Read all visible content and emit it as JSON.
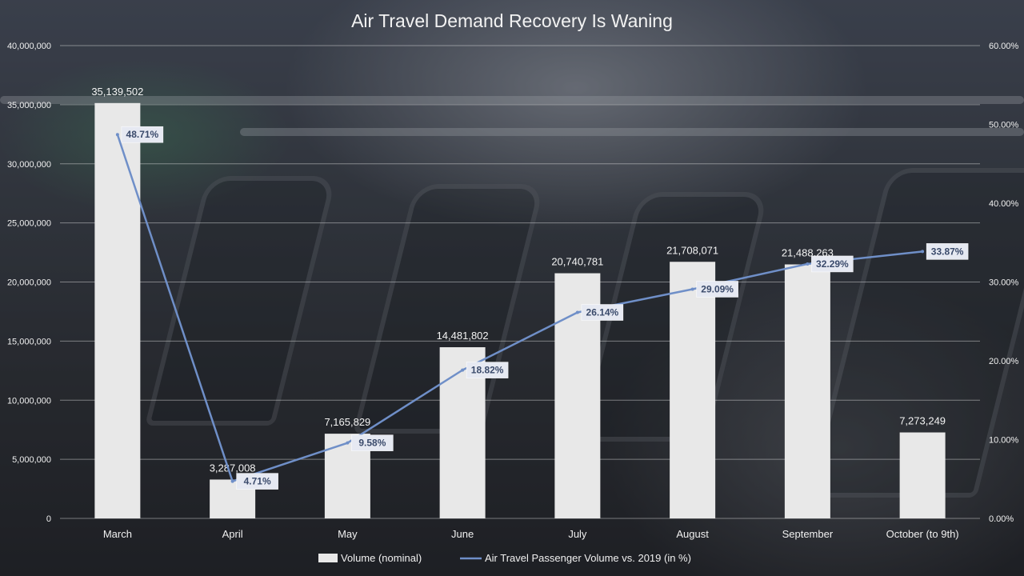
{
  "chart_data": {
    "type": "bar",
    "title": "Air Travel Demand Recovery Is Waning",
    "categories": [
      "March",
      "April",
      "May",
      "June",
      "July",
      "August",
      "September",
      "October (to 9th)"
    ],
    "series": [
      {
        "name": "Volume (nominal)",
        "type": "bar",
        "axis": "left",
        "values": [
          35139502,
          3287008,
          7165829,
          14481802,
          20740781,
          21708071,
          21488263,
          7273249
        ],
        "labels": [
          "35,139,502",
          "3,287,008",
          "7,165,829",
          "14,481,802",
          "20,740,781",
          "21,708,071",
          "21,488,263",
          "7,273,249"
        ],
        "color": "#e8e8e8"
      },
      {
        "name": "Air Travel Passenger Volume vs. 2019 (in %)",
        "type": "line",
        "axis": "right",
        "values": [
          48.71,
          4.71,
          9.58,
          18.82,
          26.14,
          29.09,
          32.29,
          33.87
        ],
        "labels": [
          "48.71%",
          "4.71%",
          "9.58%",
          "18.82%",
          "26.14%",
          "29.09%",
          "32.29%",
          "33.87%"
        ],
        "color": "#6f8fc8"
      }
    ],
    "left_axis": {
      "range": [
        0,
        40000000
      ],
      "ticks": [
        0,
        5000000,
        10000000,
        15000000,
        20000000,
        25000000,
        30000000,
        35000000,
        40000000
      ],
      "tick_labels": [
        "0",
        "5,000,000",
        "10,000,000",
        "15,000,000",
        "20,000,000",
        "25,000,000",
        "30,000,000",
        "35,000,000",
        "40,000,000"
      ]
    },
    "right_axis": {
      "range": [
        0,
        60
      ],
      "ticks": [
        0,
        10,
        20,
        30,
        40,
        50,
        60
      ],
      "tick_labels": [
        "0.00%",
        "10.00%",
        "20.00%",
        "30.00%",
        "40.00%",
        "50.00%",
        "60.00%"
      ]
    },
    "grid": true,
    "legend_position": "bottom"
  }
}
